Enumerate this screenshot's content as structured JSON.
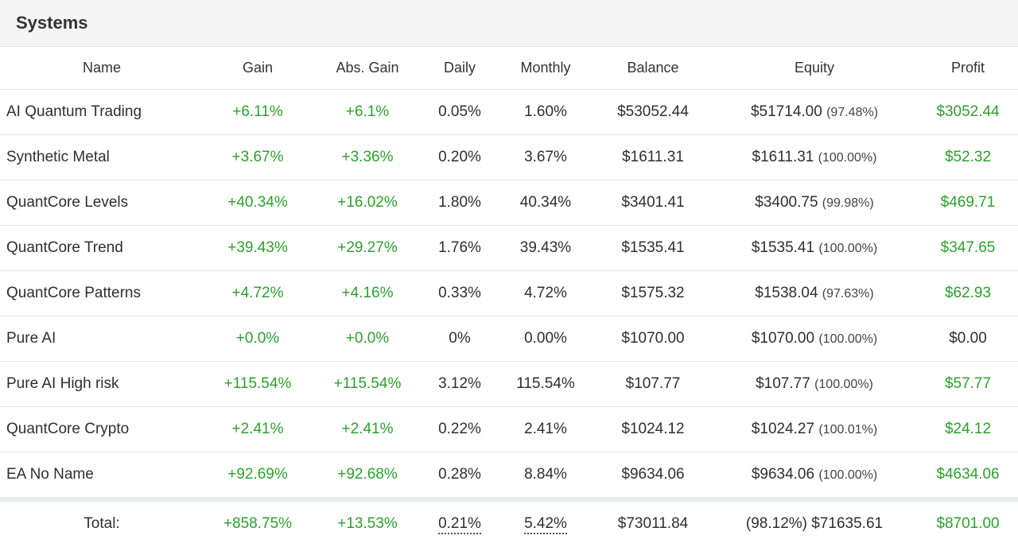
{
  "panel": {
    "title": "Systems"
  },
  "columns": [
    "Name",
    "Gain",
    "Abs. Gain",
    "Daily",
    "Monthly",
    "Balance",
    "Equity",
    "Profit"
  ],
  "rows": [
    {
      "name": "AI Quantum Trading",
      "gain": "+6.11%",
      "abs_gain": "+6.1%",
      "daily": "0.05%",
      "monthly": "1.60%",
      "balance": "$53052.44",
      "equity": "$51714.00",
      "equity_pct": "(97.48%)",
      "profit": "$3052.44",
      "profit_positive": true
    },
    {
      "name": "Synthetic Metal",
      "gain": "+3.67%",
      "abs_gain": "+3.36%",
      "daily": "0.20%",
      "monthly": "3.67%",
      "balance": "$1611.31",
      "equity": "$1611.31",
      "equity_pct": "(100.00%)",
      "profit": "$52.32",
      "profit_positive": true
    },
    {
      "name": "QuantCore Levels",
      "gain": "+40.34%",
      "abs_gain": "+16.02%",
      "daily": "1.80%",
      "monthly": "40.34%",
      "balance": "$3401.41",
      "equity": "$3400.75",
      "equity_pct": "(99.98%)",
      "profit": "$469.71",
      "profit_positive": true
    },
    {
      "name": "QuantCore Trend",
      "gain": "+39.43%",
      "abs_gain": "+29.27%",
      "daily": "1.76%",
      "monthly": "39.43%",
      "balance": "$1535.41",
      "equity": "$1535.41",
      "equity_pct": "(100.00%)",
      "profit": "$347.65",
      "profit_positive": true
    },
    {
      "name": "QuantCore Patterns",
      "gain": "+4.72%",
      "abs_gain": "+4.16%",
      "daily": "0.33%",
      "monthly": "4.72%",
      "balance": "$1575.32",
      "equity": "$1538.04",
      "equity_pct": "(97.63%)",
      "profit": "$62.93",
      "profit_positive": true
    },
    {
      "name": "Pure AI",
      "gain": "+0.0%",
      "abs_gain": "+0.0%",
      "daily": "0%",
      "monthly": "0.00%",
      "balance": "$1070.00",
      "equity": "$1070.00",
      "equity_pct": "(100.00%)",
      "profit": "$0.00",
      "profit_positive": false
    },
    {
      "name": "Pure AI High risk",
      "gain": "+115.54%",
      "abs_gain": "+115.54%",
      "daily": "3.12%",
      "monthly": "115.54%",
      "balance": "$107.77",
      "equity": "$107.77",
      "equity_pct": "(100.00%)",
      "profit": "$57.77",
      "profit_positive": true
    },
    {
      "name": "QuantCore Crypto",
      "gain": "+2.41%",
      "abs_gain": "+2.41%",
      "daily": "0.22%",
      "monthly": "2.41%",
      "balance": "$1024.12",
      "equity": "$1024.27",
      "equity_pct": "(100.01%)",
      "profit": "$24.12",
      "profit_positive": true
    },
    {
      "name": "EA No Name",
      "gain": "+92.69%",
      "abs_gain": "+92.68%",
      "daily": "0.28%",
      "monthly": "8.84%",
      "balance": "$9634.06",
      "equity": "$9634.06",
      "equity_pct": "(100.00%)",
      "profit": "$4634.06",
      "profit_positive": true
    }
  ],
  "total": {
    "label": "Total:",
    "gain": "+858.75%",
    "abs_gain": "+13.53%",
    "daily": "0.21%",
    "monthly": "5.42%",
    "balance": "$73011.84",
    "equity": "(98.12%) $71635.61",
    "profit": "$8701.00"
  },
  "colors": {
    "positive": "#2ca02c",
    "header_bg": "#f5f5f5",
    "separator": "#e8ecef"
  }
}
